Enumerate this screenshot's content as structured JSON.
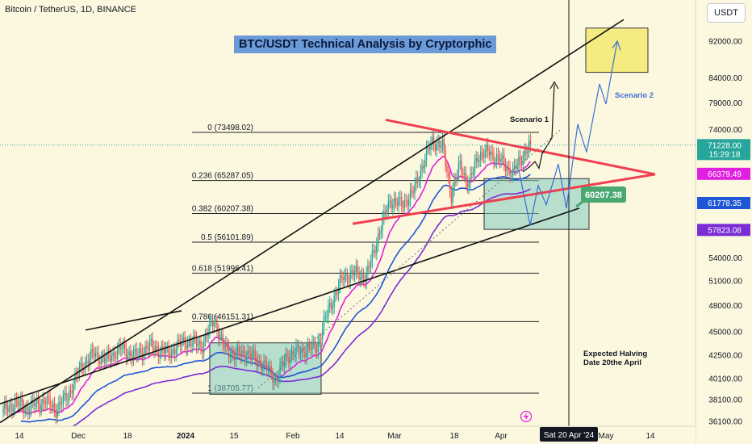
{
  "header": {
    "symbol": "Bitcoin / TetherUS, 1D, BINANCE",
    "currency": "USDT"
  },
  "title": "BTC/USDT Technical Analysis by Cryptorphic",
  "colors": {
    "background": "#fcf8e0",
    "up_candle": "#26a69a",
    "down_candle": "#ef5350",
    "trendline": "#111111",
    "triangle": "#f0404f",
    "ma_fast": "#e020e0",
    "ma_mid": "#1f56d6",
    "ma_slow": "#7b2cd6",
    "box": "#7fc8c0",
    "target_box": "#f4ec80",
    "scenario": "#3b6fd4",
    "badge_green": "#4aa872"
  },
  "annotations": {
    "scenario1": "Scenario 1",
    "scenario2": "Scenario 2",
    "halving_line1": "Expected Halving",
    "halving_line2": "Date 20the April",
    "support_label": "60207.38",
    "date_cursor": "Sat 20 Apr '24"
  },
  "chart_data": {
    "type": "candlestick",
    "y_axis": {
      "scale": "log",
      "ylim": [
        35000,
        100000
      ],
      "ticks": [
        "36100.00",
        "38100.00",
        "40100.00",
        "42500.00",
        "45000.00",
        "48000.00",
        "51000.00",
        "54000.00",
        "57823.08",
        "61778.35",
        "66379.49",
        "71228.00",
        "74000.00",
        "79000.00",
        "84000.00",
        "92000.00"
      ]
    },
    "x_axis": {
      "ticks": [
        "14",
        "Dec",
        "18",
        "2024",
        "15",
        "Feb",
        "14",
        "Mar",
        "18",
        "Apr",
        "May",
        "14"
      ]
    },
    "price_labels": [
      {
        "text": "71228.00",
        "sub": "15:29:18",
        "value": 71228,
        "color": "#26a69a"
      },
      {
        "text": "66379.49",
        "value": 66379.49,
        "color": "#e020e0"
      },
      {
        "text": "61778.35",
        "value": 61778.35,
        "color": "#1f56d6"
      },
      {
        "text": "57823.08",
        "value": 57823.08,
        "color": "#7b2cd6"
      }
    ],
    "fib_levels": [
      {
        "label": "0 (73498.02)",
        "value": 73498.02
      },
      {
        "label": "0.236 (65287.05)",
        "value": 65287.05
      },
      {
        "label": "0.382 (60207.38)",
        "value": 60207.38
      },
      {
        "label": "0.5 (56101.89)",
        "value": 56101.89
      },
      {
        "label": "0.618 (51996.41)",
        "value": 51996.41
      },
      {
        "label": "0.786 (46151.31)",
        "value": 46151.31
      },
      {
        "label": "1 (38705.77)",
        "value": 38705.77
      }
    ],
    "price_waypoints": [
      [
        0,
        37000
      ],
      [
        8,
        37800
      ],
      [
        16,
        37300
      ],
      [
        28,
        38000
      ],
      [
        36,
        37200
      ],
      [
        44,
        38500
      ],
      [
        54,
        41500
      ],
      [
        62,
        42600
      ],
      [
        70,
        42000
      ],
      [
        80,
        43200
      ],
      [
        90,
        42400
      ],
      [
        100,
        43500
      ],
      [
        112,
        42700
      ],
      [
        124,
        44000
      ],
      [
        136,
        43600
      ],
      [
        144,
        46500
      ],
      [
        150,
        43500
      ],
      [
        158,
        42500
      ],
      [
        166,
        42800
      ],
      [
        178,
        41500
      ],
      [
        186,
        40000
      ],
      [
        194,
        42500
      ],
      [
        204,
        43000
      ],
      [
        214,
        43400
      ],
      [
        222,
        47500
      ],
      [
        232,
        51500
      ],
      [
        240,
        52000
      ],
      [
        248,
        51500
      ],
      [
        256,
        57000
      ],
      [
        264,
        62200
      ],
      [
        272,
        61500
      ],
      [
        280,
        63500
      ],
      [
        288,
        69000
      ],
      [
        293,
        72000
      ],
      [
        300,
        71000
      ],
      [
        306,
        63000
      ],
      [
        312,
        68000
      ],
      [
        318,
        64500
      ],
      [
        324,
        69500
      ],
      [
        332,
        70000
      ],
      [
        340,
        68500
      ],
      [
        348,
        66500
      ],
      [
        356,
        70000
      ],
      [
        360,
        71228
      ]
    ]
  }
}
